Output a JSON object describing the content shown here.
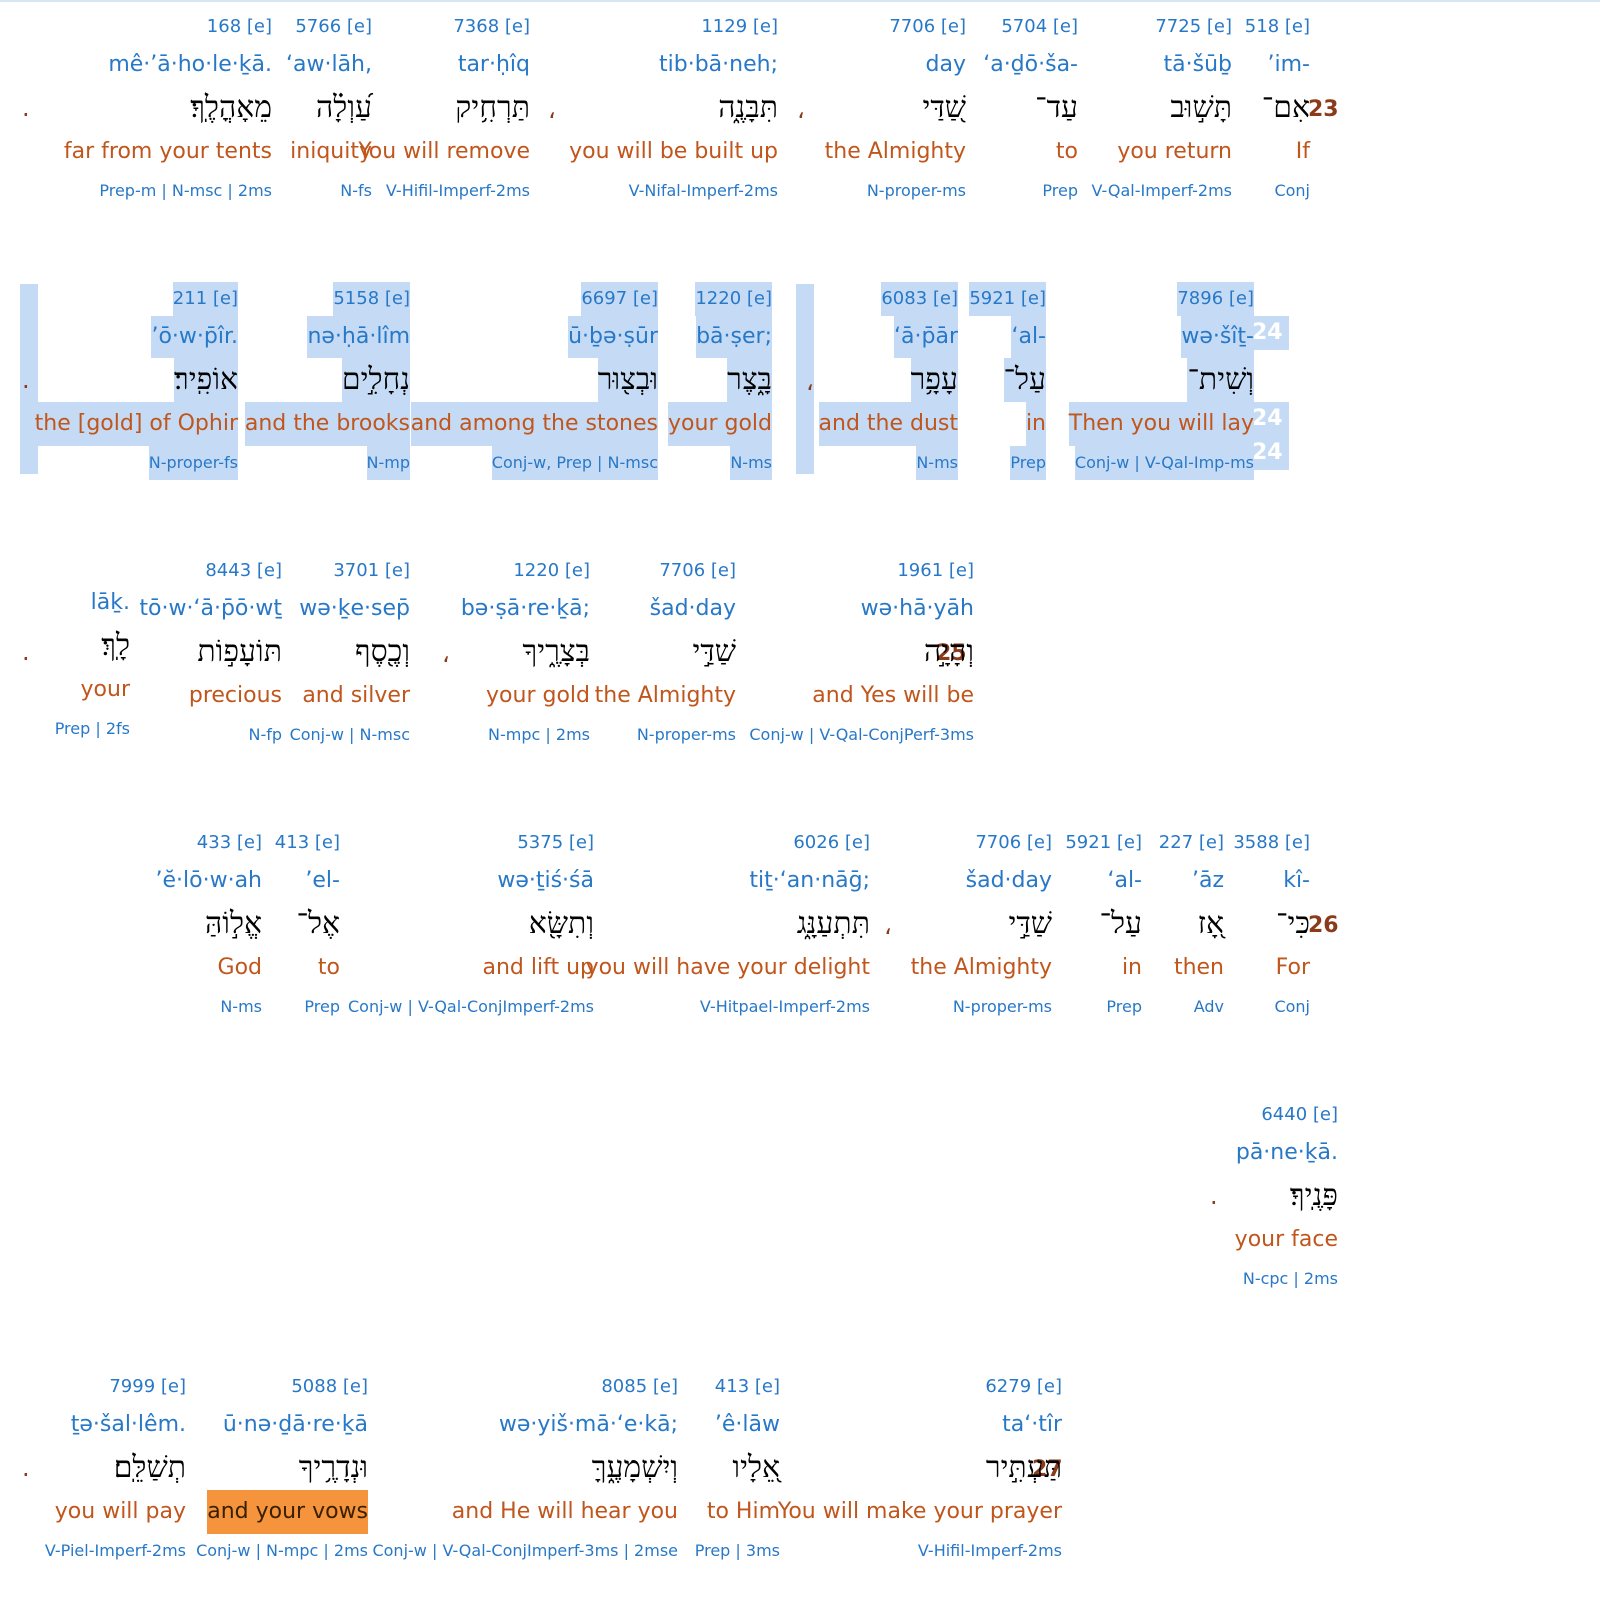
{
  "verses": [
    {
      "number": "23",
      "words": [
        {
          "strongs": "518 [e]",
          "translit": "’im-",
          "hebrew": "אִם־",
          "english": "If",
          "parsing": "Conj"
        },
        {
          "strongs": "7725 [e]",
          "translit": "tā·šūḇ",
          "hebrew": "תָּשׁ֣וּב",
          "english": "you return",
          "parsing": "V-Qal-Imperf-2ms"
        },
        {
          "strongs": "5704 [e]",
          "translit": "‘a·ḏō·ša-",
          "hebrew": "עַד־",
          "english": "to",
          "parsing": "Prep"
        },
        {
          "strongs": "7706 [e]",
          "translit": "day",
          "hebrew": "שַׁ֭דַּי",
          "english": "the Almighty",
          "parsing": "N-proper-ms"
        },
        {
          "strongs": "1129 [e]",
          "translit": "tib·bā·neh;",
          "hebrew": "תִּבָּנֶ֑ה",
          "english": "you will be built up",
          "parsing": "V-Nifal-Imperf-2ms"
        },
        {
          "strongs": "7368 [e]",
          "translit": "tar·ḥîq",
          "hebrew": "תַּרְחִ֥יק",
          "english": "You will remove",
          "parsing": "V-Hifil-Imperf-2ms"
        },
        {
          "strongs": "5766 [e]",
          "translit": "‘aw·lāh,",
          "hebrew": "עַ֝וְלָ֗ה",
          "english": "iniquity",
          "parsing": "N-fs"
        },
        {
          "strongs": "168 [e]",
          "translit": "mê·’ā·ho·le·ḵā.",
          "hebrew": "מֵאָהֳלֶֽךָ׃",
          "english": "far from your tents",
          "parsing": "Prep-m | N-msc | 2ms"
        }
      ]
    },
    {
      "number": "24",
      "words": [
        {
          "strongs": "7896 [e]",
          "translit": "wə·šîṯ-",
          "hebrew": "וְשִׁית־",
          "english": "Then you will lay",
          "parsing": "Conj-w | V-Qal-Imp-ms"
        },
        {
          "strongs": "5921 [e]",
          "translit": "‘al-",
          "hebrew": "עַל־",
          "english": "in",
          "parsing": "Prep"
        },
        {
          "strongs": "6083 [e]",
          "translit": "‘ā·p̄ār",
          "hebrew": "עָפָ֥ר",
          "english": "and the dust",
          "parsing": "N-ms"
        },
        {
          "strongs": "1220 [e]",
          "translit": "bā·ṣer;",
          "hebrew": "בָּ֑צֶר",
          "english": "your gold",
          "parsing": "N-ms"
        },
        {
          "strongs": "6697 [e]",
          "translit": "ū·ḇə·ṣūr",
          "hebrew": "וּבְצ֖וּר",
          "english": "and among the stones",
          "parsing": "Conj-w, Prep | N-msc"
        },
        {
          "strongs": "5158 [e]",
          "translit": "nə·ḥā·lîm",
          "hebrew": "נְחָלִ֣ים",
          "english": "and the brooks",
          "parsing": "N-mp"
        },
        {
          "strongs": "211 [e]",
          "translit": "’ō·w·p̄îr.",
          "hebrew": "אוֹפִֽיר׃",
          "english": "the [gold] of Ophir",
          "parsing": "N-proper-fs"
        }
      ]
    },
    {
      "number": "25",
      "words": [
        {
          "strongs": "1961 [e]",
          "translit": "wə·hā·yāh",
          "hebrew": "וְהָיָ֣ה",
          "english": "and Yes will be",
          "parsing": "Conj-w | V-Qal-ConjPerf-3ms"
        },
        {
          "strongs": "7706 [e]",
          "translit": "šad·day",
          "hebrew": "שַׁדַּ֣י",
          "english": "the Almighty",
          "parsing": "N-proper-ms"
        },
        {
          "strongs": "1220 [e]",
          "translit": "bə·ṣā·re·ḵā;",
          "hebrew": "בְּצָרֶ֑יךָ",
          "english": "your gold",
          "parsing": "N-mpc | 2ms"
        },
        {
          "strongs": "3701 [e]",
          "translit": "wə·ḵe·sep̄",
          "hebrew": "וְכֶ֖סֶף",
          "english": "and silver",
          "parsing": "Conj-w | N-msc"
        },
        {
          "strongs": "8443 [e]",
          "translit": "tō·w·‘ā·p̄ō·wṯ",
          "hebrew": "תּוֹעָפ֣וֹת",
          "english": "precious",
          "parsing": "N-fp"
        },
        {
          "strongs": "",
          "translit": "lāḵ.",
          "hebrew": "לָֽךְ׃",
          "english": "your",
          "parsing": "Prep | 2fs"
        }
      ]
    },
    {
      "number": "26",
      "words": [
        {
          "strongs": "3588 [e]",
          "translit": "kî-",
          "hebrew": "כִּי־",
          "english": "For",
          "parsing": "Conj"
        },
        {
          "strongs": "227 [e]",
          "translit": "’āz",
          "hebrew": "אָ֭ז",
          "english": "then",
          "parsing": "Adv"
        },
        {
          "strongs": "5921 [e]",
          "translit": "‘al-",
          "hebrew": "עַל־",
          "english": "in",
          "parsing": "Prep"
        },
        {
          "strongs": "7706 [e]",
          "translit": "šad·day",
          "hebrew": "שַׁדַּ֣י",
          "english": "the Almighty",
          "parsing": "N-proper-ms"
        },
        {
          "strongs": "6026 [e]",
          "translit": "tiṯ·‘an·nāḡ;",
          "hebrew": "תִּתְעַנָּ֑ג",
          "english": "you will have your delight",
          "parsing": "V-Hitpael-Imperf-2ms"
        },
        {
          "strongs": "5375 [e]",
          "translit": "wə·ṯiś·śā",
          "hebrew": "וְתִשָּׂ֖א",
          "english": "and lift up",
          "parsing": "Conj-w | V-Qal-ConjImperf-2ms"
        },
        {
          "strongs": "413 [e]",
          "translit": "’el-",
          "hebrew": "אֶל־",
          "english": "to",
          "parsing": "Prep"
        },
        {
          "strongs": "433 [e]",
          "translit": "’ĕ·lō·w·ah",
          "hebrew": "אֱל֣וֹהַּ",
          "english": "God",
          "parsing": "N-ms"
        },
        {
          "strongs": "6440 [e]",
          "translit": "pā·ne·ḵā.",
          "hebrew": "פָּנֶֽיךָ׃",
          "english": "your face",
          "parsing": "N-cpc | 2ms"
        }
      ]
    },
    {
      "number": "27",
      "words": [
        {
          "strongs": "6279 [e]",
          "translit": "ta‘·tîr",
          "hebrew": "תַּעְתִּ֣יר",
          "english": "You will make your prayer",
          "parsing": "V-Hifil-Imperf-2ms"
        },
        {
          "strongs": "413 [e]",
          "translit": "’ê·lāw",
          "hebrew": "אֵ֭לָיו",
          "english": "to Him",
          "parsing": "Prep | 3ms"
        },
        {
          "strongs": "8085 [e]",
          "translit": "wə·yiš·mā·‘e·kā;",
          "hebrew": "וְיִשְׁמָעֶ֑ךָּ",
          "english": "and He will hear you",
          "parsing": "Conj-w | V-Qal-ConjImperf-3ms | 2mse"
        },
        {
          "strongs": "5088 [e]",
          "translit": "ū·nə·ḏā·re·ḵā",
          "hebrew": "וּנְדָרֶ֥יךָ",
          "english": "and your vows",
          "parsing": "Conj-w | N-mpc | 2ms"
        },
        {
          "strongs": "7999 [e]",
          "translit": "ṯə·šal·lêm.",
          "hebrew": "תְשַׁלֵּֽם׃",
          "english": "you will pay",
          "parsing": "V-Piel-Imperf-2ms"
        }
      ]
    }
  ],
  "punctuation": {
    "comma": "،",
    "period": "."
  },
  "colors": {
    "strongs": "#2878c8",
    "english": "#c0561c",
    "verse_number": "#8b3a1a",
    "selection": "#c5dbf5",
    "highlight": "#f5943c"
  }
}
